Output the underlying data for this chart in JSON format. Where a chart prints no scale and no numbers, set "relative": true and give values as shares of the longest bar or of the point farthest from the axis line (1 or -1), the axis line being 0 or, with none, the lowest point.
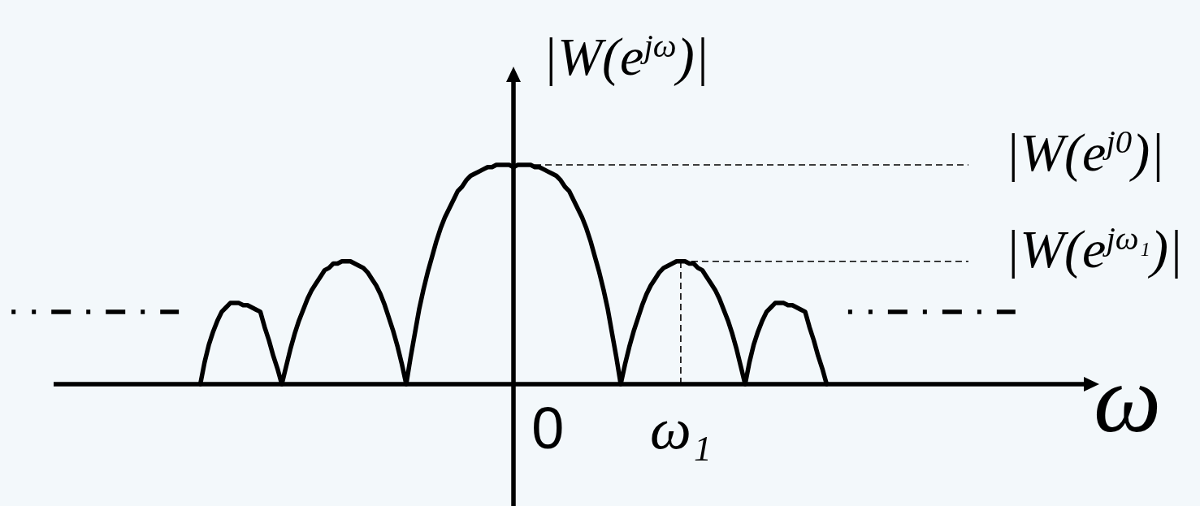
{
  "chart_data": {
    "type": "line",
    "relative": true,
    "line_style": "solid",
    "xlabel": "ω",
    "ylabel": "|W(e$^{jω}$)|",
    "categories": [
      null,
      null,
      null,
      null,
      null,
      null,
      null,
      null,
      null,
      null,
      null,
      null,
      null,
      null,
      null,
      null,
      null,
      null,
      null,
      null,
      null,
      null,
      null,
      null,
      null,
      null,
      null,
      null,
      null,
      null,
      null,
      null,
      null,
      null,
      null,
      null,
      null,
      null,
      null,
      null,
      null,
      null,
      null,
      null,
      null,
      null,
      null,
      null,
      null,
      null,
      null,
      null,
      null,
      null,
      null,
      null,
      null,
      null,
      null,
      null,
      null,
      null,
      null,
      null,
      null,
      null,
      null,
      null,
      null,
      null,
      null,
      null,
      null,
      null,
      null,
      null,
      null,
      null,
      null,
      null,
      null,
      null,
      null,
      null,
      null,
      null,
      null,
      null,
      null,
      null,
      null,
      null,
      null,
      null,
      null,
      null,
      null,
      null,
      null,
      null,
      null,
      null,
      null,
      null,
      null,
      null,
      null,
      null,
      null,
      null,
      null,
      null,
      null,
      null,
      null,
      null,
      null,
      null,
      null,
      null,
      null,
      null,
      null,
      null,
      null,
      "0",
      null,
      null,
      null,
      null,
      null,
      null,
      null,
      null,
      null,
      null,
      null,
      null,
      null,
      null,
      null,
      null,
      null,
      null,
      null,
      null,
      null,
      null,
      null,
      null,
      null,
      null,
      null,
      null,
      null,
      null,
      "ω₁",
      null,
      null,
      null,
      null,
      null,
      null,
      null,
      null,
      null,
      null,
      null,
      null,
      null,
      null,
      null,
      null,
      null,
      null,
      null,
      null,
      null,
      null,
      null,
      null,
      null,
      null,
      null,
      null,
      null,
      null,
      null,
      null,
      null,
      null,
      null,
      null,
      null,
      null,
      null,
      null,
      null,
      null,
      null,
      null,
      null,
      null,
      null,
      null,
      null,
      null,
      null,
      null,
      null,
      null,
      null,
      null,
      null,
      null,
      null,
      null,
      null,
      null,
      null,
      null,
      null,
      null,
      null,
      null,
      null,
      null,
      null,
      null,
      null,
      null,
      null,
      null,
      null,
      null
    ],
    "series": [
      {
        "color": "#000000",
        "values": [
          null,
          null,
          null,
          null,
          null,
          null,
          null,
          null,
          null,
          null,
          null,
          null,
          null,
          null,
          null,
          null,
          null,
          null,
          null,
          null,
          null,
          null,
          null,
          null,
          null,
          null,
          null,
          null,
          null,
          null,
          null,
          null,
          null,
          null,
          null,
          null,
          null,
          null,
          null,
          null,
          null,
          null,
          null,
          null,
          0,
          0.1,
          0.18,
          0.24,
          0.29,
          0.33,
          0.35,
          0.37,
          0.37,
          0.37,
          0.36,
          0.36,
          0.35,
          0.34,
          0.33,
          0.26,
          0.2,
          0.13,
          0.07,
          0,
          0.08,
          0.16,
          0.23,
          0.29,
          0.34,
          0.39,
          0.43,
          0.46,
          0.49,
          0.52,
          0.53,
          0.55,
          0.55,
          0.56,
          0.56,
          0.56,
          0.55,
          0.54,
          0.53,
          0.51,
          0.48,
          0.45,
          0.41,
          0.36,
          0.3,
          0.24,
          0.17,
          0.09,
          0,
          0.12,
          0.23,
          0.34,
          0.43,
          0.51,
          0.58,
          0.65,
          0.71,
          0.76,
          0.8,
          0.84,
          0.88,
          0.9,
          0.93,
          0.95,
          0.96,
          0.97,
          0.98,
          0.99,
          0.99,
          1,
          1,
          1,
          1,
          0.99,
          1,
          1,
          1,
          1,
          0.99,
          0.99,
          0.98,
          0.97,
          0.96,
          0.95,
          0.93,
          0.9,
          0.88,
          0.84,
          0.8,
          0.76,
          0.71,
          0.65,
          0.58,
          0.51,
          0.43,
          0.34,
          0.23,
          0.12,
          0,
          0.09,
          0.17,
          0.24,
          0.3,
          0.36,
          0.41,
          0.45,
          0.48,
          0.51,
          0.53,
          0.54,
          0.55,
          0.56,
          0.56,
          0.56,
          0.55,
          0.55,
          0.53,
          0.52,
          0.49,
          0.46,
          0.43,
          0.39,
          0.34,
          0.29,
          0.23,
          0.16,
          0.08,
          0,
          0.1,
          0.18,
          0.24,
          0.29,
          0.33,
          0.35,
          0.37,
          0.37,
          0.37,
          0.36,
          0.36,
          0.35,
          0.34,
          0.33,
          0.26,
          0.2,
          0.13,
          0.07,
          0,
          null,
          null,
          null,
          null,
          null,
          null,
          null,
          null,
          null,
          null,
          null,
          null,
          null,
          null,
          null,
          null,
          null,
          null,
          null,
          null,
          null,
          null,
          null,
          null,
          null,
          null,
          null,
          null,
          null,
          null,
          null,
          null,
          null,
          null,
          null,
          null,
          null,
          null,
          null,
          null,
          null,
          null,
          null,
          null
        ]
      },
      {
        "color": "#000000",
        "line_style": "dashed",
        "values": [
          0.33,
          0.33,
          0.33,
          0.33,
          0.33,
          0.33,
          0.33,
          0.33,
          0.33,
          0.33,
          0.33,
          0.33,
          0.33,
          0.33,
          0.33,
          0.33,
          0.33,
          0.33,
          0.33,
          0.33,
          0.33,
          0.33,
          0.33,
          0.33,
          0.33,
          0.33,
          0.33,
          0.33,
          0.33,
          0.33,
          0.33,
          0.33,
          0.33,
          0.33,
          0.33,
          0.33,
          0.33,
          0.33,
          0.33,
          0.33,
          null,
          null,
          null,
          null,
          null,
          null,
          null,
          null,
          null,
          null,
          null,
          null,
          null,
          null,
          null,
          null,
          null,
          null,
          null,
          null,
          null,
          null,
          null,
          null,
          null,
          null,
          null,
          null,
          null,
          null,
          null,
          null,
          null,
          null,
          null,
          null,
          null,
          null,
          null,
          null,
          null,
          null,
          null,
          null,
          null,
          null,
          null,
          null,
          null,
          null,
          null,
          null,
          null,
          null,
          null,
          null,
          null,
          null,
          null,
          null,
          null,
          null,
          null,
          null,
          null,
          null,
          null,
          null,
          null,
          null,
          null,
          null,
          null,
          null,
          null,
          null,
          null,
          null,
          null,
          null,
          null,
          null,
          null,
          null,
          null,
          null,
          null,
          null,
          null,
          null,
          null,
          null,
          null,
          null,
          null,
          null,
          null,
          null,
          null,
          null,
          null,
          null,
          null,
          null,
          null,
          null,
          null,
          null,
          null,
          null,
          null,
          null,
          null,
          null,
          null,
          null,
          null,
          null,
          null,
          null,
          null,
          null,
          null,
          null,
          null,
          null,
          null,
          null,
          null,
          null,
          null,
          null,
          null,
          null,
          null,
          null,
          null,
          null,
          null,
          null,
          null,
          null,
          null,
          null,
          null,
          null,
          null,
          null,
          null,
          null,
          null,
          null,
          null,
          null,
          null,
          0.33,
          0.33,
          0.33,
          0.33,
          0.33,
          0.33,
          0.33,
          0.33,
          0.33,
          0.33,
          0.33,
          0.33,
          0.33,
          0.33,
          0.33,
          0.33,
          0.33,
          0.33,
          0.33,
          0.33,
          0.33,
          0.33,
          0.33,
          0.33,
          0.33,
          0.33,
          0.33,
          0.33,
          0.33,
          0.33,
          0.33,
          0.33,
          0.33,
          0.33,
          0.33,
          0.33,
          0.33,
          0.33,
          0.33,
          0.33
        ]
      }
    ],
    "ref_lines": [
      {
        "axis": "y",
        "value": 1,
        "label": "|W(e$^{j0}$)|",
        "color": "#000000",
        "line_style": "dashed"
      },
      {
        "axis": "y",
        "value": 0.56,
        "label": "|W(e$^{jω₁}$)|",
        "color": "#000000",
        "line_style": "dashed"
      },
      {
        "axis": "x",
        "value": "ω₁",
        "color": "#000000",
        "line_style": "dashed"
      }
    ]
  }
}
